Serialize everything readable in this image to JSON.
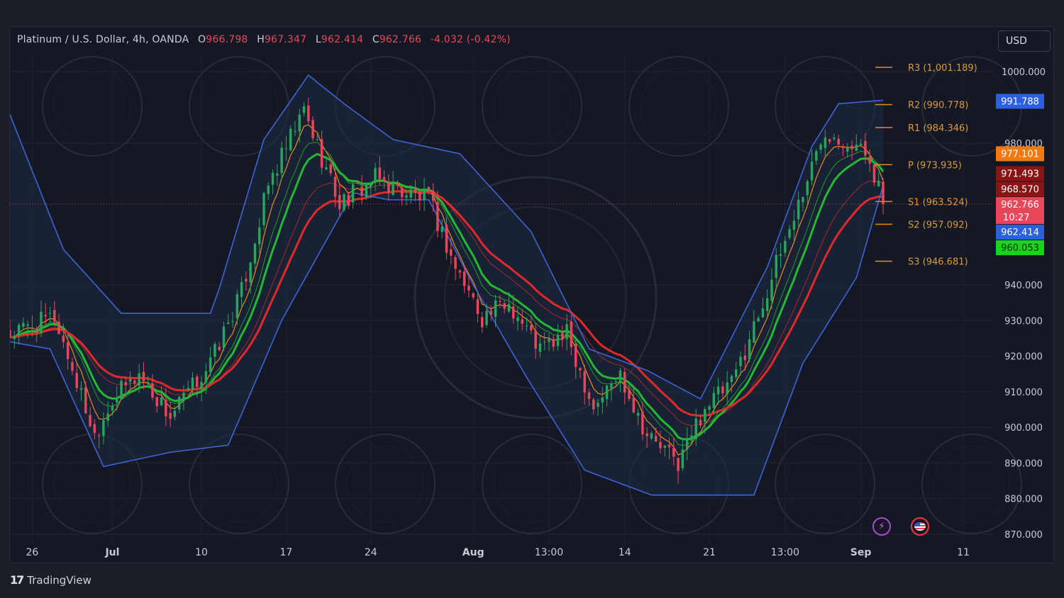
{
  "header": {
    "symbol": "Platinum / U.S. Dollar, 4h, OANDA",
    "open_label": "O",
    "open": "966.798",
    "high_label": "H",
    "high": "967.347",
    "low_label": "L",
    "low": "962.414",
    "close_label": "C",
    "close": "962.766",
    "change": "-4.032 (-0.42%)"
  },
  "currency": "USD",
  "branding": {
    "logo_text": "TradingView",
    "logo_mark": "17"
  },
  "events": {
    "bolt_icon": "lightning-icon",
    "flag_icon": "us-flag-icon"
  },
  "colors": {
    "background": "#141824",
    "up_candle": "#26a65b",
    "down_candle": "#e8475b",
    "channel_line": "#3d63d6",
    "channel_fill": "#1e2b44",
    "ema_red": "#e02a2a",
    "ema_orange": "#e88a1e",
    "ema_green": "#24b833",
    "pivot_line": "#e8891e",
    "pivot_text": "#d99a3a"
  },
  "chart_data": {
    "type": "line",
    "title": "Platinum / U.S. Dollar, 4h, OANDA",
    "xlabel": "",
    "ylabel": "",
    "ylim": [
      870,
      1003
    ],
    "y_ticks": [
      870,
      880,
      890,
      900,
      910,
      920,
      930,
      940,
      980,
      1000
    ],
    "y_tick_labels": [
      "870.000",
      "880.000",
      "890.000",
      "900.000",
      "910.000",
      "920.000",
      "930.000",
      "940.000",
      "980.000",
      "1000.000"
    ],
    "x_ticks": [
      {
        "label": "26",
        "bold": false
      },
      {
        "label": "Jul",
        "bold": true
      },
      {
        "label": "10",
        "bold": false
      },
      {
        "label": "17",
        "bold": false
      },
      {
        "label": "24",
        "bold": false
      },
      {
        "label": "Aug",
        "bold": true
      },
      {
        "label": "13:00",
        "bold": false
      },
      {
        "label": "14",
        "bold": false
      },
      {
        "label": "21",
        "bold": false
      },
      {
        "label": "13:00",
        "bold": false
      },
      {
        "label": "Sep",
        "bold": true
      },
      {
        "label": "11",
        "bold": false
      }
    ],
    "x_tick_index": [
      5,
      23,
      43,
      62,
      81,
      104,
      121,
      138,
      157,
      174,
      191,
      214
    ],
    "last_index": 196,
    "price_key_points": [
      [
        0,
        926
      ],
      [
        10,
        931
      ],
      [
        19,
        898
      ],
      [
        23,
        908
      ],
      [
        29,
        915
      ],
      [
        36,
        903
      ],
      [
        45,
        918
      ],
      [
        52,
        938
      ],
      [
        58,
        968
      ],
      [
        66,
        989
      ],
      [
        74,
        963
      ],
      [
        82,
        970
      ],
      [
        89,
        966
      ],
      [
        94,
        964
      ],
      [
        100,
        945
      ],
      [
        106,
        931
      ],
      [
        112,
        935
      ],
      [
        119,
        922
      ],
      [
        125,
        926
      ],
      [
        131,
        906
      ],
      [
        137,
        915
      ],
      [
        143,
        898
      ],
      [
        150,
        890
      ],
      [
        156,
        906
      ],
      [
        162,
        912
      ],
      [
        169,
        935
      ],
      [
        175,
        956
      ],
      [
        183,
        984
      ],
      [
        189,
        980
      ],
      [
        193,
        976
      ],
      [
        196,
        962.8
      ]
    ],
    "channel_upper": [
      [
        0,
        988
      ],
      [
        12,
        950
      ],
      [
        25,
        932
      ],
      [
        45,
        932
      ],
      [
        47,
        939
      ],
      [
        57,
        981
      ],
      [
        67,
        999
      ],
      [
        75,
        991
      ],
      [
        86,
        981
      ],
      [
        101,
        977
      ],
      [
        117,
        955
      ],
      [
        130,
        922
      ],
      [
        143,
        916
      ],
      [
        155,
        908
      ],
      [
        170,
        945
      ],
      [
        180,
        979
      ],
      [
        186,
        991
      ],
      [
        196,
        992
      ]
    ],
    "channel_lower": [
      [
        0,
        924
      ],
      [
        9,
        922
      ],
      [
        21,
        889
      ],
      [
        36,
        893
      ],
      [
        49,
        895
      ],
      [
        61,
        930
      ],
      [
        77,
        966
      ],
      [
        85,
        964
      ],
      [
        94,
        964
      ],
      [
        104,
        940
      ],
      [
        116,
        914
      ],
      [
        129,
        888
      ],
      [
        144,
        881
      ],
      [
        167,
        881
      ],
      [
        178,
        918
      ],
      [
        190,
        942
      ],
      [
        196,
        968
      ]
    ],
    "pivots": [
      {
        "name": "R3",
        "value": 1001.189,
        "label": "R3 (1,001.189)"
      },
      {
        "name": "R2",
        "value": 990.778,
        "label": "R2 (990.778)"
      },
      {
        "name": "R1",
        "value": 984.346,
        "label": "R1 (984.346)"
      },
      {
        "name": "P",
        "value": 973.935,
        "label": "P (973.935)"
      },
      {
        "name": "S1",
        "value": 963.524,
        "label": "S1 (963.524)"
      },
      {
        "name": "S2",
        "value": 957.092,
        "label": "S2 (957.092)"
      },
      {
        "name": "S3",
        "value": 946.681,
        "label": "S3 (946.681)"
      }
    ],
    "price_tags": [
      {
        "value": 991.788,
        "text": "991.788",
        "color": "#2a5fe0"
      },
      {
        "value": 977.101,
        "text": "977.101",
        "color": "#f07a10"
      },
      {
        "value": 971.493,
        "text": "971.493",
        "color": "#8a1414"
      },
      {
        "value": 968.57,
        "text": "968.570",
        "color": "#8a1414"
      },
      {
        "value": 962.766,
        "text": "962.766",
        "subtext": "10:27",
        "color": "#e8475b"
      },
      {
        "value": 962.414,
        "text": "962.414",
        "color": "#2a5fe0"
      },
      {
        "value": 960.053,
        "text": "960.053",
        "color": "#19d419"
      }
    ]
  }
}
